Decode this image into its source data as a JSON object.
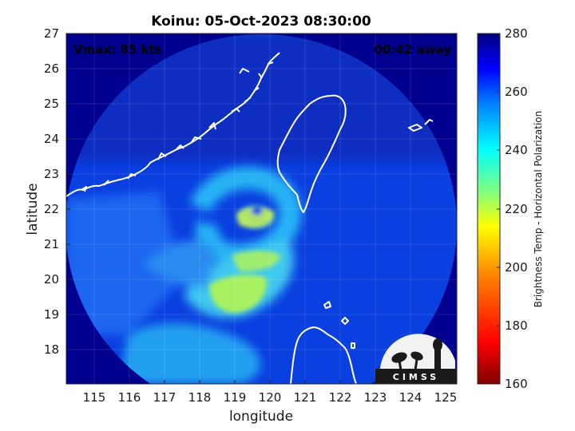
{
  "title": "Koinu: 05-Oct-2023 08:30:00",
  "annotations": {
    "vmax": "Vmax: 85 kts",
    "time_away": "00:42 away"
  },
  "axes": {
    "xlabel": "longitude",
    "ylabel": "latitude",
    "xticks": [
      "115",
      "116",
      "117",
      "118",
      "119",
      "120",
      "121",
      "122",
      "123",
      "124",
      "125"
    ],
    "yticks": [
      "18",
      "19",
      "20",
      "21",
      "22",
      "23",
      "24",
      "25",
      "26",
      "27"
    ]
  },
  "colorbar": {
    "label": "Brightness Temp - Horizontal Polarization",
    "ticks": [
      "280",
      "260",
      "240",
      "220",
      "200",
      "180",
      "160"
    ]
  },
  "logo": {
    "text": "CIMSS"
  },
  "colors": {
    "outside": "#00008f",
    "background": "#0a3fe0",
    "coast": "#ffffff"
  }
}
